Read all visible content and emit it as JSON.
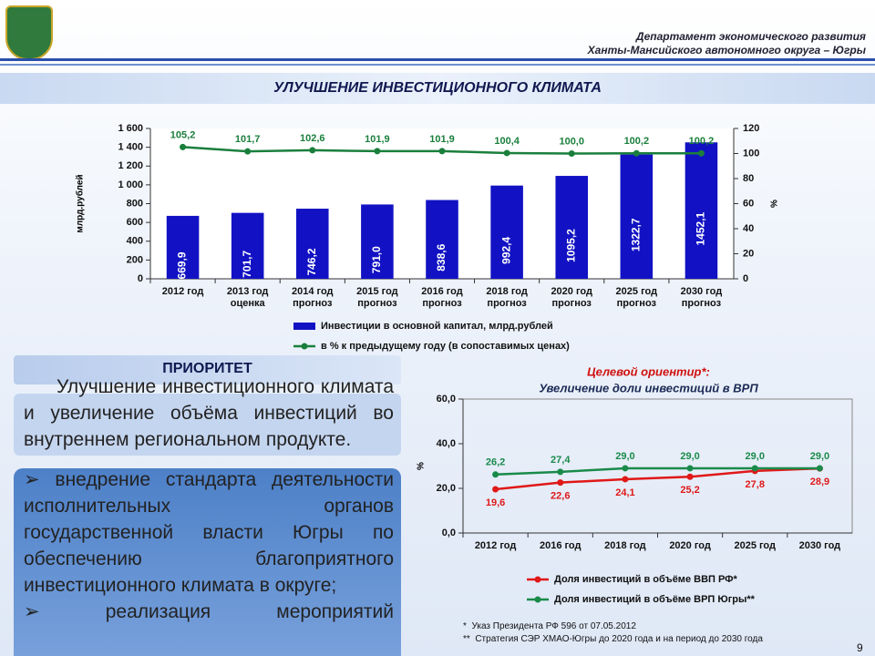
{
  "header": {
    "line1": "Департамент экономического развития",
    "line2": "Ханты-Мансийского автономного округа – Югры"
  },
  "slide_title": "УЛУЧШЕНИЕ ИНВЕСТИЦИОННОГО КЛИМАТА",
  "priority": {
    "heading": "ПРИОРИТЕТ",
    "text": "Улучшение инвестиционного климата и увеличение объёма инвестиций во внутреннем региональном продукте.",
    "items": [
      "➢ внедрение стандарта деятельности исполнительных органов государственной власти Югры по обеспечению благоприятного инвестиционного климата в округе;",
      "➢ реализация мероприятий"
    ]
  },
  "footnotes": [
    "*  Указ Президента РФ 596 от 07.05.2012",
    "**  Стратегия СЭР ХМАО-Югры до 2020 года и на период до 2030 года"
  ],
  "page_number": "9",
  "chart_data": [
    {
      "type": "bar",
      "ylabel": "млрд.рублей",
      "y2label": "%",
      "categories": [
        "2012 год",
        "2013 год\nоценка",
        "2014 год\nпрогноз",
        "2015 год\nпрогноз",
        "2016 год\nпрогноз",
        "2018 год\nпрогноз",
        "2020 год\nпрогноз",
        "2025 год\nпрогноз",
        "2030 год\nпрогноз"
      ],
      "series": [
        {
          "name": "Инвестиции в основной капитал, млрд.рублей",
          "color": "#1212c4",
          "values": [
            669.9,
            701.7,
            746.2,
            791.0,
            838.6,
            992.4,
            1095.2,
            1322.7,
            1452.1
          ],
          "value_labels": [
            "669,9",
            "701,7",
            "746,2",
            "791,0",
            "838,6",
            "992,4",
            "1095,2",
            "1322,7",
            "1452,1"
          ]
        },
        {
          "name": "в % к предыдущему году (в сопоставимых ценах)",
          "color": "#1a7f3c",
          "type": "line",
          "axis": "y2",
          "values": [
            105.2,
            101.7,
            102.6,
            101.9,
            101.9,
            100.4,
            100.0,
            100.2,
            100.2
          ],
          "value_labels": [
            "105,2",
            "101,7",
            "102,6",
            "101,9",
            "101,9",
            "100,4",
            "100,0",
            "100,2",
            "100,2"
          ]
        }
      ],
      "ylim": [
        0,
        1600
      ],
      "yticks": [
        0,
        200,
        400,
        600,
        800,
        {
          "value": 1000,
          "label": "1 000"
        },
        {
          "value": 1200,
          "label": "1 200"
        },
        {
          "value": 1400,
          "label": "1 400"
        },
        {
          "value": 1600,
          "label": "1 600"
        }
      ],
      "y2lim": [
        0,
        120
      ],
      "y2ticks": [
        0,
        20,
        40,
        60,
        80,
        100,
        120
      ]
    },
    {
      "type": "line",
      "title": "Целевой ориентир*:",
      "subtitle": "Увеличение доли инвестиций в ВРП",
      "ylabel": "%",
      "categories": [
        "2012 год",
        "2016 год",
        "2018 год",
        "2020 год",
        "2025 год",
        "2030 год"
      ],
      "series": [
        {
          "name": "Доля инвестиций в объёме ВВП РФ*",
          "color": "#e01818",
          "values": [
            19.6,
            22.6,
            24.1,
            25.2,
            27.8,
            28.9
          ],
          "value_labels": [
            "19,6",
            "22,6",
            "24,1",
            "25,2",
            "27,8",
            "28,9"
          ]
        },
        {
          "name": "Доля инвестиций в объёме ВРП Югры**",
          "color": "#1a8a4a",
          "values": [
            26.2,
            27.4,
            29.0,
            29.0,
            29.0,
            29.0
          ],
          "value_labels": [
            "26,2",
            "27,4",
            "29,0",
            "29,0",
            "29,0",
            "29,0"
          ]
        }
      ],
      "ylim": [
        0,
        60
      ],
      "yticks": [
        {
          "value": 0,
          "label": "0,0"
        },
        {
          "value": 20,
          "label": "20,0"
        },
        {
          "value": 40,
          "label": "40,0"
        },
        {
          "value": 60,
          "label": "60,0"
        }
      ]
    }
  ]
}
